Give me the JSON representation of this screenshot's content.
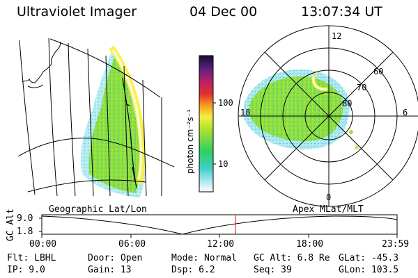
{
  "header": {
    "instrument": "Ultraviolet Imager",
    "date": "04 Dec 00",
    "time": "13:07:34 UT"
  },
  "colorbar": {
    "unit_label": "photon cm⁻²s⁻¹",
    "ticks": [
      "100",
      "10"
    ]
  },
  "polar_plot": {
    "mlt_labels": [
      "12",
      "18",
      "6",
      "0"
    ],
    "mlat_labels": [
      "60",
      "70",
      "80"
    ]
  },
  "projection_labels": {
    "left": "Geographic Lat/Lon",
    "right": "Apex MLat/MLT"
  },
  "altitude_plot": {
    "ylabel": "GC Alt",
    "yticks": [
      "9.0",
      "1.8"
    ],
    "xticks": [
      "00:00",
      "06:00",
      "12:00",
      "18:00",
      "23:59"
    ]
  },
  "footer": {
    "flt": "Flt: LBHL",
    "ip": "IP:  9.0",
    "door": "Door: Open",
    "gain": "Gain: 13",
    "mode": "Mode: Normal",
    "dsp": "Dsp:      6.2",
    "gc_alt": "GC Alt: 6.8 Re",
    "seq": "Seq: 39",
    "glat": "GLat: -45.3",
    "glon": "GLon: 103.5"
  },
  "colors": {
    "marker": "#e03020"
  }
}
